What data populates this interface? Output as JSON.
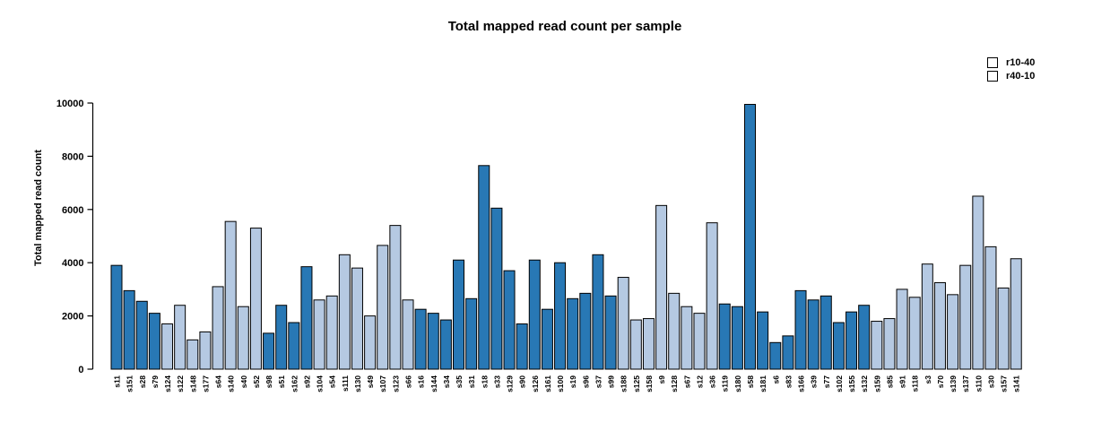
{
  "chart_data": {
    "type": "bar",
    "title": "Total mapped read count per sample",
    "xlabel": "",
    "ylabel": "Total mapped read count",
    "ylim": [
      0,
      10000
    ],
    "yticks": [
      0,
      2000,
      4000,
      6000,
      8000,
      10000
    ],
    "grid": false,
    "legend_position": "top-right",
    "bar_border_color": "#000000",
    "legend": [
      {
        "label": "r10-40",
        "color": "#2878b5"
      },
      {
        "label": "r40-10",
        "color": "#b5c9e2"
      }
    ],
    "series_colors": {
      "r10-40": "#2878b5",
      "r40-10": "#b5c9e2"
    },
    "categories": [
      "s11",
      "s151",
      "s28",
      "s79",
      "s124",
      "s122",
      "s148",
      "s177",
      "s64",
      "s140",
      "s40",
      "s52",
      "s98",
      "s51",
      "s162",
      "s92",
      "s104",
      "s54",
      "s111",
      "s130",
      "s49",
      "s107",
      "s123",
      "s66",
      "s16",
      "s144",
      "s34",
      "s35",
      "s31",
      "s18",
      "s33",
      "s129",
      "s90",
      "s126",
      "s161",
      "s100",
      "s19",
      "s96",
      "s37",
      "s99",
      "s188",
      "s125",
      "s158",
      "s9",
      "s128",
      "s67",
      "s12",
      "s36",
      "s119",
      "s180",
      "s58",
      "s181",
      "s6",
      "s83",
      "s166",
      "s39",
      "s77",
      "s102",
      "s155",
      "s132",
      "s159",
      "s85",
      "s91",
      "s118",
      "s3",
      "s70",
      "s139",
      "s137",
      "s110",
      "s30",
      "s157",
      "s141"
    ],
    "groups": [
      "r10-40",
      "r10-40",
      "r10-40",
      "r10-40",
      "r40-10",
      "r40-10",
      "r40-10",
      "r40-10",
      "r40-10",
      "r40-10",
      "r40-10",
      "r40-10",
      "r10-40",
      "r10-40",
      "r10-40",
      "r10-40",
      "r40-10",
      "r40-10",
      "r40-10",
      "r40-10",
      "r40-10",
      "r40-10",
      "r40-10",
      "r40-10",
      "r10-40",
      "r10-40",
      "r10-40",
      "r10-40",
      "r10-40",
      "r10-40",
      "r10-40",
      "r10-40",
      "r10-40",
      "r10-40",
      "r10-40",
      "r10-40",
      "r10-40",
      "r10-40",
      "r10-40",
      "r10-40",
      "r40-10",
      "r40-10",
      "r40-10",
      "r40-10",
      "r40-10",
      "r40-10",
      "r40-10",
      "r40-10",
      "r10-40",
      "r10-40",
      "r10-40",
      "r10-40",
      "r10-40",
      "r10-40",
      "r10-40",
      "r10-40",
      "r10-40",
      "r10-40",
      "r10-40",
      "r10-40",
      "r40-10",
      "r40-10",
      "r40-10",
      "r40-10",
      "r40-10",
      "r40-10",
      "r40-10",
      "r40-10",
      "r40-10",
      "r40-10",
      "r40-10",
      "r40-10"
    ],
    "values": [
      3900,
      2950,
      2550,
      2100,
      1700,
      2400,
      1100,
      1400,
      3100,
      5550,
      2350,
      5300,
      1350,
      2400,
      1750,
      3850,
      2600,
      2750,
      4300,
      3800,
      2000,
      4650,
      5400,
      2600,
      2250,
      2100,
      1850,
      4100,
      2650,
      7650,
      6050,
      3700,
      1700,
      4100,
      2250,
      4000,
      2650,
      2850,
      4300,
      2750,
      3450,
      1850,
      1900,
      6150,
      2850,
      2350,
      2100,
      5500,
      2450,
      2350,
      9950,
      2150,
      1000,
      1250,
      2950,
      2600,
      2750,
      1750,
      2150,
      2400,
      1800,
      1900,
      3000,
      2700,
      3950,
      3250,
      2800,
      3900,
      6500,
      4600,
      3050,
      4150
    ]
  }
}
